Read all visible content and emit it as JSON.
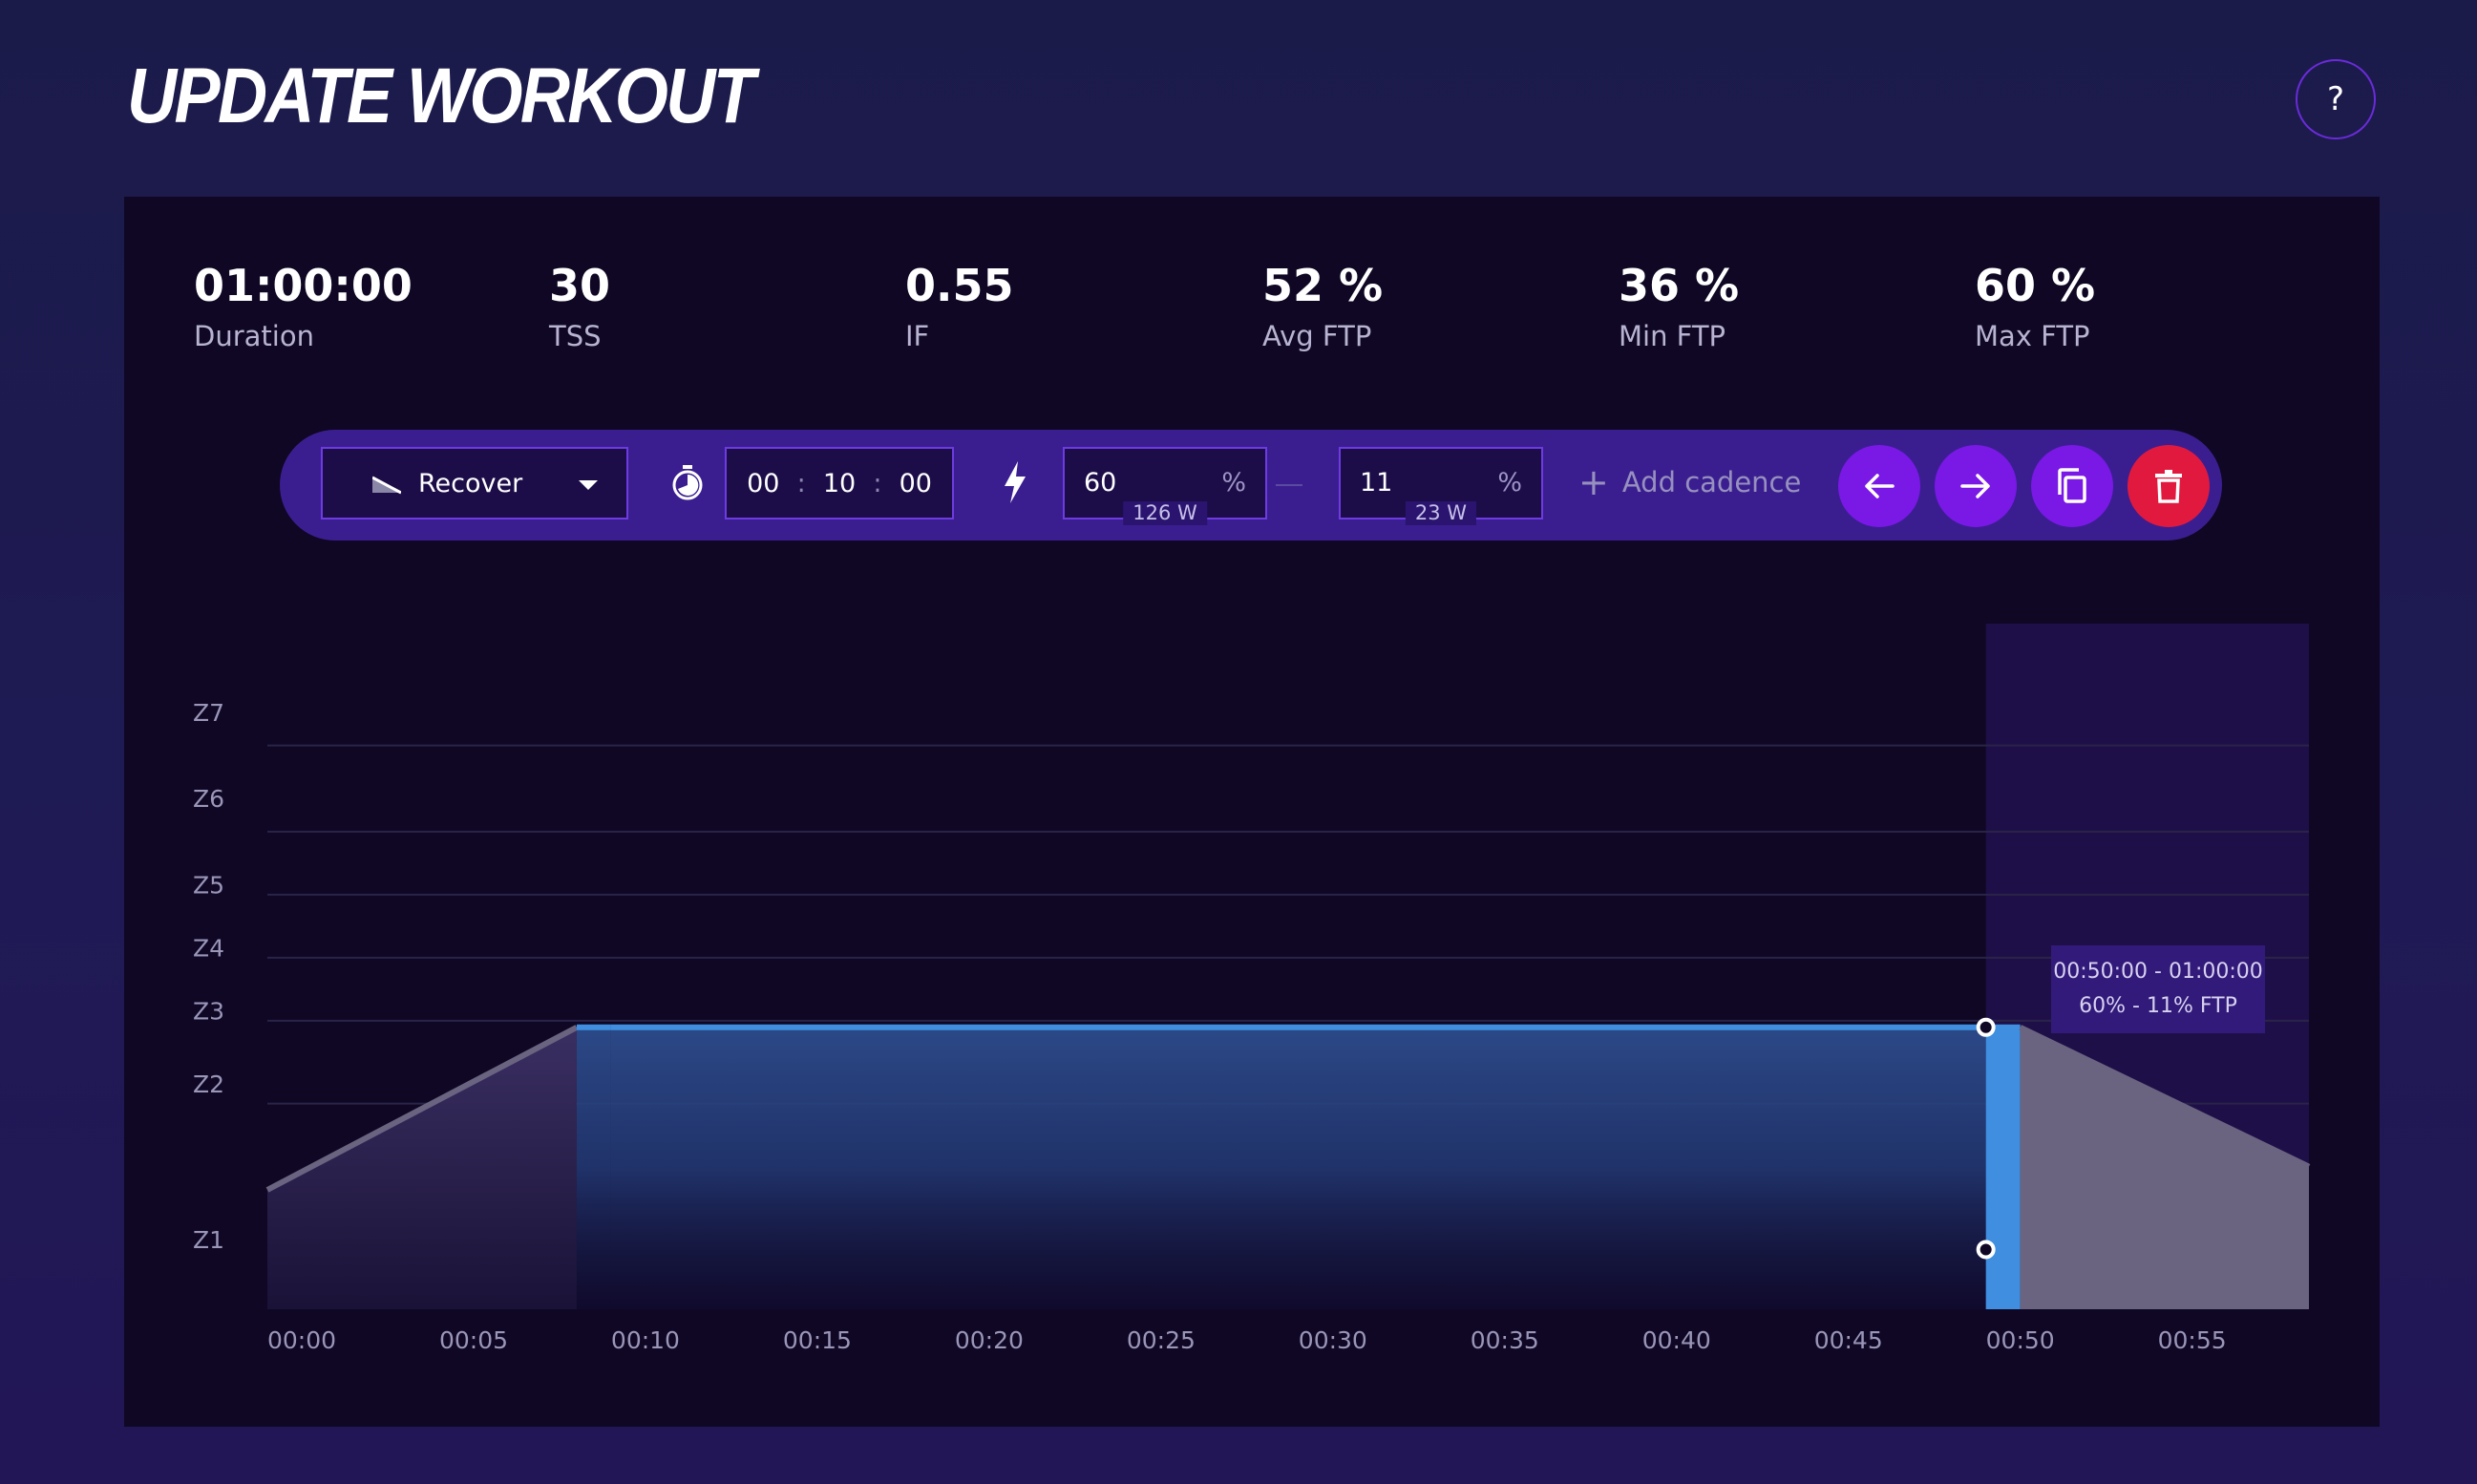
{
  "header": {
    "title": "UPDATE WORKOUT",
    "help_label": "?"
  },
  "stats": [
    {
      "value": "01:00:00",
      "label": "Duration"
    },
    {
      "value": "30",
      "label": "TSS"
    },
    {
      "value": "0.55",
      "label": "IF"
    },
    {
      "value": "52 %",
      "label": "Avg FTP"
    },
    {
      "value": "36 %",
      "label": "Min FTP"
    },
    {
      "value": "60 %",
      "label": "Max FTP"
    }
  ],
  "toolbar": {
    "segment_type": "Recover",
    "duration": {
      "hours": "00",
      "minutes": "10",
      "seconds": "00",
      "separator": ":"
    },
    "power_start": {
      "value": "60",
      "unit": "%",
      "watts": "126 W"
    },
    "power_end": {
      "value": "11",
      "unit": "%",
      "watts": "23 W"
    },
    "add_cadence_label": "Add cadence",
    "add_cadence_plus": "+"
  },
  "colors": {
    "accent": "#7a18e6",
    "danger": "#e2193f",
    "selected_segment": "#3f8ee0",
    "unselected_segment": "#6a6480"
  },
  "tooltip": {
    "line1": "00:50:00 - 01:00:00",
    "line2": "60% - 11% FTP"
  },
  "chart_data": {
    "type": "area",
    "x_unit": "minutes",
    "xlim": [
      0,
      59.4
    ],
    "x_ticks": [
      "00:00",
      "00:05",
      "00:10",
      "00:15",
      "00:20",
      "00:25",
      "00:30",
      "00:35",
      "00:40",
      "00:45",
      "00:50",
      "00:55"
    ],
    "zones": [
      {
        "label": "Z7",
        "label_ftp": 155,
        "line_ftp": 145
      },
      {
        "label": "Z6",
        "label_ftp": 129,
        "line_ftp": 119
      },
      {
        "label": "Z5",
        "label_ftp": 103,
        "line_ftp": 100
      },
      {
        "label": "Z4",
        "label_ftp": 84,
        "line_ftp": 81
      },
      {
        "label": "Z3",
        "label_ftp": 65,
        "line_ftp": 62
      },
      {
        "label": "Z2",
        "label_ftp": 43,
        "line_ftp": 37
      },
      {
        "label": "Z1",
        "label_ftp": -4
      }
    ],
    "ylim": [
      -25,
      178
    ],
    "segments": [
      {
        "start": 0,
        "end": 9,
        "from_ftp": 11,
        "to_ftp": 60,
        "selected": false
      },
      {
        "start": 9,
        "end": 10,
        "from_ftp": 60,
        "to_ftp": 60,
        "selected": false
      },
      {
        "start": 10,
        "end": 50,
        "from_ftp": 60,
        "to_ftp": 60,
        "selected": false
      },
      {
        "start": 50,
        "end": 51,
        "from_ftp": 60,
        "to_ftp": 60,
        "selected": true
      },
      {
        "start": 51,
        "end": 59.4,
        "from_ftp": 60,
        "to_ftp": 18,
        "selected": false
      }
    ],
    "selection": {
      "start": 50,
      "end": 59.4
    },
    "handles": [
      {
        "x": 50,
        "ftp": 60
      },
      {
        "x": 50,
        "ftp": -7
      }
    ]
  }
}
